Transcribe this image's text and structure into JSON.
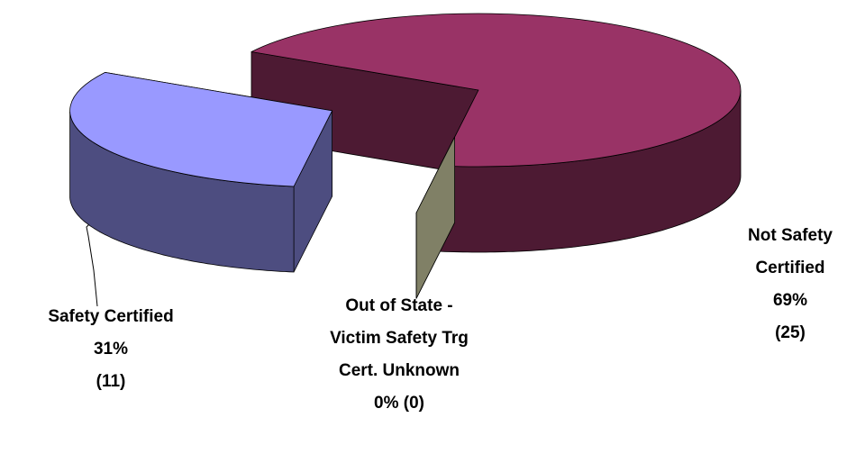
{
  "chart_data": {
    "type": "pie3d",
    "categories": [
      "Not Safety Certified",
      "Out of State - Victim Safety Trg Cert. Unknown",
      "Safety Certified"
    ],
    "values": [
      69,
      0,
      31
    ],
    "value_labels": [
      "69%",
      "0%",
      "31%"
    ],
    "counts": [
      25,
      0,
      11
    ],
    "count_labels": [
      "(25)",
      "(0)",
      "(11)"
    ],
    "colors": [
      "#993366",
      "#FFFFCC",
      "#9999FF"
    ]
  }
}
